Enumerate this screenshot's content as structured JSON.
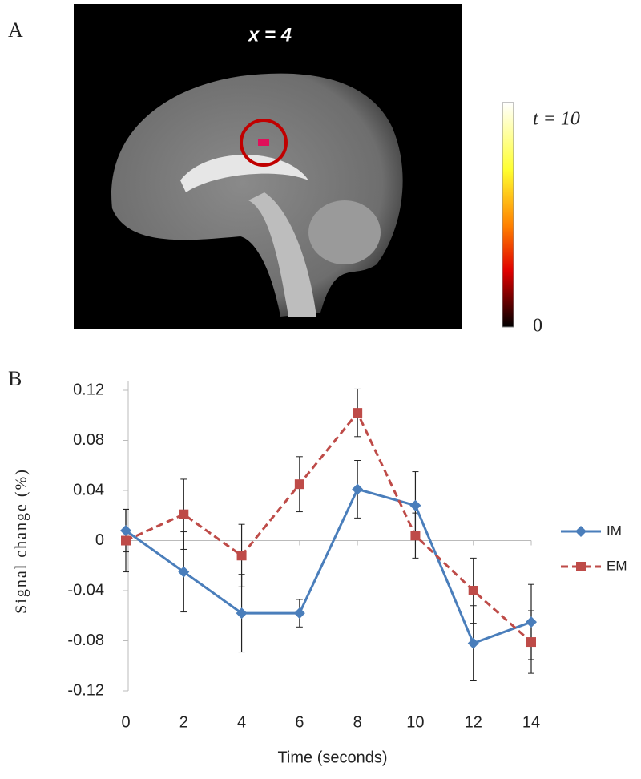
{
  "panel_a": {
    "label": "A",
    "slice_label": "x = 4",
    "colorbar_max_label": "t = 10",
    "colorbar_min_label": "0"
  },
  "panel_b_label": "B",
  "chart_data": {
    "type": "line",
    "x": [
      0,
      2,
      4,
      6,
      8,
      10,
      12,
      14
    ],
    "xlim": [
      0,
      14
    ],
    "xticks": [
      0,
      2,
      4,
      6,
      8,
      10,
      12,
      14
    ],
    "ylim": [
      -0.12,
      0.12
    ],
    "yticks": [
      0.12,
      0.08,
      0.04,
      0,
      -0.04,
      -0.08,
      -0.12
    ],
    "xlabel": "Time (seconds)",
    "ylabel": "Signal change (%)",
    "legend": "right",
    "grid": false,
    "series": [
      {
        "name": "IM",
        "color": "#4a7ebb",
        "marker": "diamond",
        "dashed": false,
        "values": [
          0.008,
          -0.025,
          -0.058,
          -0.058,
          0.041,
          0.028,
          -0.082,
          -0.065
        ],
        "errors": [
          0.017,
          0.032,
          0.031,
          0.011,
          0.023,
          0.027,
          0.03,
          0.03
        ]
      },
      {
        "name": "EM",
        "color": "#be4b48",
        "marker": "square",
        "dashed": true,
        "values": [
          0,
          0.021,
          -0.012,
          0.045,
          0.102,
          0.004,
          -0.04,
          -0.081
        ],
        "errors": [
          0.025,
          0.028,
          0.025,
          0.022,
          0.019,
          0.018,
          0.026,
          0.025
        ]
      }
    ]
  }
}
